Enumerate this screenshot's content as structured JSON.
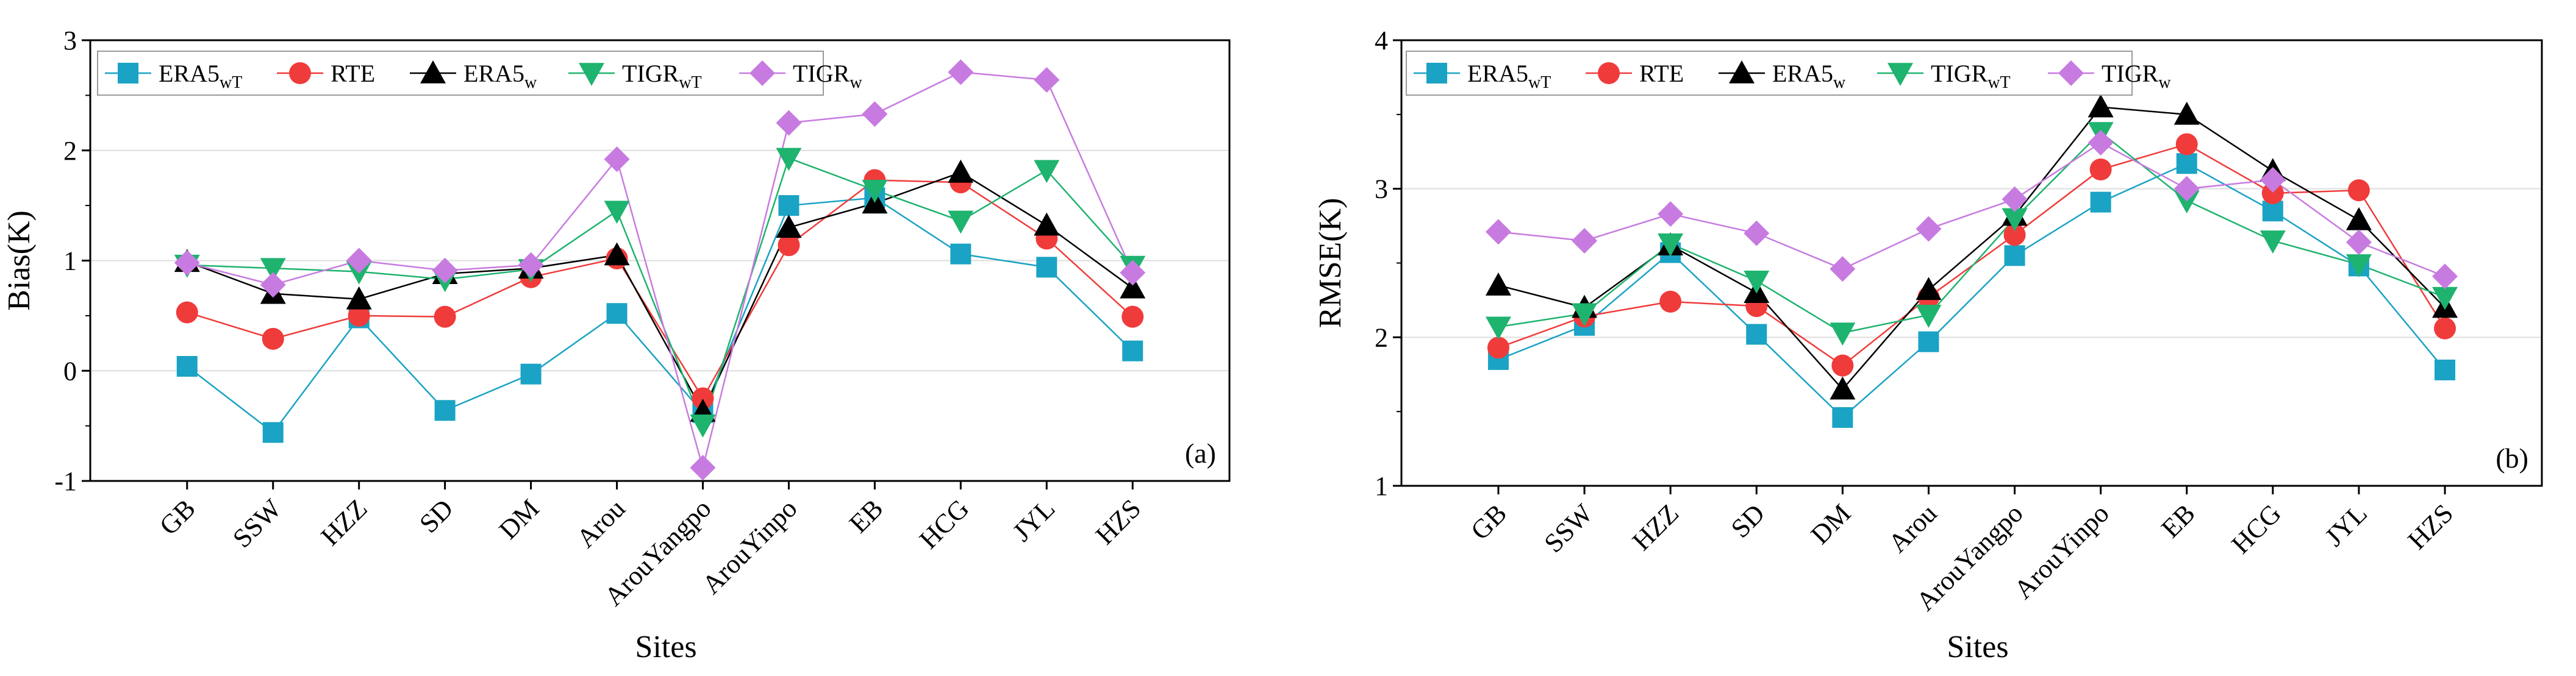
{
  "figure": {
    "background": "#ffffff",
    "series_styles": [
      {
        "name": "ERA5",
        "sub": "wT",
        "color": "#1aa3c4",
        "marker": "square"
      },
      {
        "name": "RTE",
        "sub": "",
        "color": "#f03b3b",
        "marker": "circle"
      },
      {
        "name": "ERA5",
        "sub": "w",
        "color": "#000000",
        "marker": "triangle-up"
      },
      {
        "name": "TIGR",
        "sub": "wT",
        "color": "#1eb36e",
        "marker": "triangle-down"
      },
      {
        "name": "TIGR",
        "sub": "w",
        "color": "#c77be0",
        "marker": "diamond"
      }
    ]
  },
  "chart_data": [
    {
      "type": "line",
      "panel_label": "(a)",
      "xlabel": "Sites",
      "ylabel": "Bias(K)",
      "ylim": [
        -1,
        3
      ],
      "yticks": [
        "-1",
        "0",
        "1",
        "2",
        "3"
      ],
      "grid": true,
      "legend_position": "top-left",
      "categories": [
        "GB",
        "SSW",
        "HZZ",
        "SD",
        "DM",
        "Arou",
        "ArouYangpo",
        "ArouYinpo",
        "EB",
        "HCG",
        "JYL",
        "HZS"
      ],
      "series": [
        {
          "name": "ERA5",
          "sub": "wT",
          "values": [
            0.04,
            -0.56,
            0.48,
            -0.36,
            -0.03,
            0.52,
            -0.38,
            1.5,
            1.57,
            1.06,
            0.94,
            0.18
          ]
        },
        {
          "name": "RTE",
          "sub": "",
          "values": [
            0.53,
            0.29,
            0.5,
            0.49,
            0.85,
            1.02,
            -0.25,
            1.14,
            1.73,
            1.71,
            1.2,
            0.49
          ]
        },
        {
          "name": "ERA5",
          "sub": "w",
          "values": [
            0.99,
            0.7,
            0.65,
            0.88,
            0.93,
            1.05,
            -0.37,
            1.3,
            1.52,
            1.8,
            1.32,
            0.75
          ]
        },
        {
          "name": "TIGR",
          "sub": "wT",
          "values": [
            0.96,
            0.93,
            0.9,
            0.83,
            0.92,
            1.45,
            -0.49,
            1.93,
            1.64,
            1.36,
            1.82,
            0.95
          ]
        },
        {
          "name": "TIGR",
          "sub": "w",
          "values": [
            0.98,
            0.78,
            1.0,
            0.91,
            0.96,
            1.92,
            -0.88,
            2.25,
            2.33,
            2.71,
            2.64,
            0.89
          ]
        }
      ]
    },
    {
      "type": "line",
      "panel_label": "(b)",
      "xlabel": "Sites",
      "ylabel": "RMSE(K)",
      "ylim": [
        1,
        4
      ],
      "yticks": [
        "1",
        "2",
        "3",
        "4"
      ],
      "grid": true,
      "legend_position": "top-left",
      "categories": [
        "GB",
        "SSW",
        "HZZ",
        "SD",
        "DM",
        "Arou",
        "ArouYangpo",
        "ArouYinpo",
        "EB",
        "HCG",
        "JYL",
        "HZS"
      ],
      "series": [
        {
          "name": "ERA5",
          "sub": "wT",
          "values": [
            1.85,
            2.08,
            2.57,
            2.02,
            1.46,
            1.97,
            2.55,
            2.91,
            3.17,
            2.85,
            2.48,
            1.78
          ]
        },
        {
          "name": "RTE",
          "sub": "",
          "values": [
            1.93,
            2.14,
            2.24,
            2.21,
            1.81,
            2.27,
            2.69,
            3.13,
            3.3,
            2.97,
            2.99,
            2.06
          ]
        },
        {
          "name": "ERA5",
          "sub": "w",
          "values": [
            2.35,
            2.2,
            2.62,
            2.3,
            1.65,
            2.32,
            2.82,
            3.55,
            3.5,
            3.12,
            2.79,
            2.2
          ]
        },
        {
          "name": "TIGR",
          "sub": "wT",
          "values": [
            2.07,
            2.16,
            2.63,
            2.38,
            2.03,
            2.15,
            2.8,
            3.38,
            2.92,
            2.65,
            2.49,
            2.27
          ]
        },
        {
          "name": "TIGR",
          "sub": "w",
          "values": [
            2.71,
            2.65,
            2.83,
            2.7,
            2.46,
            2.73,
            2.93,
            3.31,
            3.0,
            3.06,
            2.64,
            2.41
          ]
        }
      ]
    }
  ]
}
